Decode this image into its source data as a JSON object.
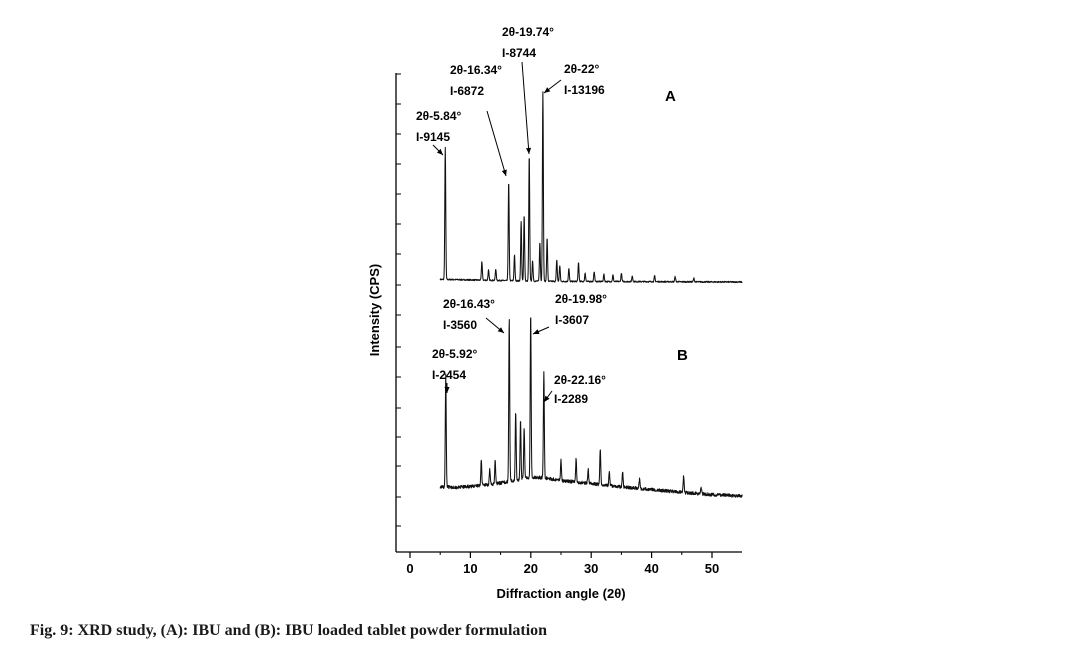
{
  "figure": {
    "caption": "Fig. 9: XRD study, (A): IBU and (B): IBU loaded tablet powder formulation"
  },
  "chart_data": {
    "type": "line",
    "xlabel": "Diffraction angle (2θ)",
    "ylabel": "Intensity (CPS)",
    "xlim": [
      -2,
      55
    ],
    "x_ticks": [
      0,
      10,
      20,
      30,
      40,
      50
    ],
    "x_tick_labels": [
      "0",
      "10",
      "20",
      "30",
      "40",
      "50"
    ],
    "y_tick_labels_shown": false,
    "grid": false,
    "panels": [
      {
        "label": "A",
        "baseline_points": [
          [
            5,
            230
          ],
          [
            7,
            225
          ],
          [
            10,
            200
          ],
          [
            15,
            160
          ],
          [
            20,
            120
          ],
          [
            25,
            95
          ],
          [
            30,
            90
          ],
          [
            40,
            80
          ],
          [
            50,
            60
          ],
          [
            55,
            55
          ]
        ],
        "peaks": [
          {
            "x": 5.84,
            "y": 9145
          },
          {
            "x": 11.9,
            "y": 1300
          },
          {
            "x": 13.0,
            "y": 700
          },
          {
            "x": 14.2,
            "y": 800
          },
          {
            "x": 16.34,
            "y": 6872
          },
          {
            "x": 17.3,
            "y": 1800
          },
          {
            "x": 18.4,
            "y": 4100
          },
          {
            "x": 18.9,
            "y": 4600
          },
          {
            "x": 19.74,
            "y": 8744
          },
          {
            "x": 20.3,
            "y": 1400
          },
          {
            "x": 21.5,
            "y": 2700
          },
          {
            "x": 22.0,
            "y": 13196
          },
          {
            "x": 22.7,
            "y": 3000
          },
          {
            "x": 24.3,
            "y": 1500
          },
          {
            "x": 24.8,
            "y": 1100
          },
          {
            "x": 26.3,
            "y": 900
          },
          {
            "x": 27.9,
            "y": 1300
          },
          {
            "x": 29.0,
            "y": 600
          },
          {
            "x": 30.5,
            "y": 700
          },
          {
            "x": 32.1,
            "y": 500
          },
          {
            "x": 33.6,
            "y": 450
          },
          {
            "x": 35.0,
            "y": 600
          },
          {
            "x": 36.8,
            "y": 400
          },
          {
            "x": 40.5,
            "y": 400
          },
          {
            "x": 43.9,
            "y": 350
          },
          {
            "x": 47.0,
            "y": 250
          }
        ],
        "annotations": [
          {
            "angle": "2θ-5.84°",
            "intensity": "I-9145",
            "x": 5.84,
            "y": 9145
          },
          {
            "angle": "2θ-16.34°",
            "intensity": "I-6872",
            "x": 16.34,
            "y": 6872
          },
          {
            "angle": "2θ-19.74°",
            "intensity": "I-8744",
            "x": 19.74,
            "y": 8744
          },
          {
            "angle": "2θ-22°",
            "intensity": "I-13196",
            "x": 22.0,
            "y": 13196
          }
        ]
      },
      {
        "label": "B",
        "baseline_points": [
          [
            5,
            260
          ],
          [
            8,
            250
          ],
          [
            10,
            270
          ],
          [
            14,
            320
          ],
          [
            18,
            420
          ],
          [
            20,
            470
          ],
          [
            22,
            460
          ],
          [
            25,
            400
          ],
          [
            30,
            330
          ],
          [
            35,
            260
          ],
          [
            40,
            200
          ],
          [
            45,
            140
          ],
          [
            50,
            90
          ],
          [
            55,
            60
          ]
        ],
        "peaks": [
          {
            "x": 5.92,
            "y": 2454
          },
          {
            "x": 11.8,
            "y": 550
          },
          {
            "x": 13.2,
            "y": 350
          },
          {
            "x": 14.1,
            "y": 500
          },
          {
            "x": 16.43,
            "y": 3560
          },
          {
            "x": 17.5,
            "y": 1500
          },
          {
            "x": 18.3,
            "y": 1300
          },
          {
            "x": 18.9,
            "y": 1100
          },
          {
            "x": 19.98,
            "y": 3607
          },
          {
            "x": 22.16,
            "y": 2289
          },
          {
            "x": 25.0,
            "y": 450
          },
          {
            "x": 27.5,
            "y": 500
          },
          {
            "x": 29.5,
            "y": 300
          },
          {
            "x": 31.5,
            "y": 800
          },
          {
            "x": 33.0,
            "y": 300
          },
          {
            "x": 35.2,
            "y": 350
          },
          {
            "x": 38.0,
            "y": 200
          },
          {
            "x": 45.3,
            "y": 350
          },
          {
            "x": 48.2,
            "y": 150
          }
        ],
        "annotations": [
          {
            "angle": "2θ-5.92°",
            "intensity": "I-2454",
            "x": 5.92,
            "y": 2454
          },
          {
            "angle": "2θ-16.43°",
            "intensity": "I-3560",
            "x": 16.43,
            "y": 3560
          },
          {
            "angle": "2θ-19.98°",
            "intensity": "I-3607",
            "x": 19.98,
            "y": 3607
          },
          {
            "angle": "2θ-22.16°",
            "intensity": "I-2289",
            "x": 22.16,
            "y": 2289
          }
        ]
      }
    ]
  }
}
